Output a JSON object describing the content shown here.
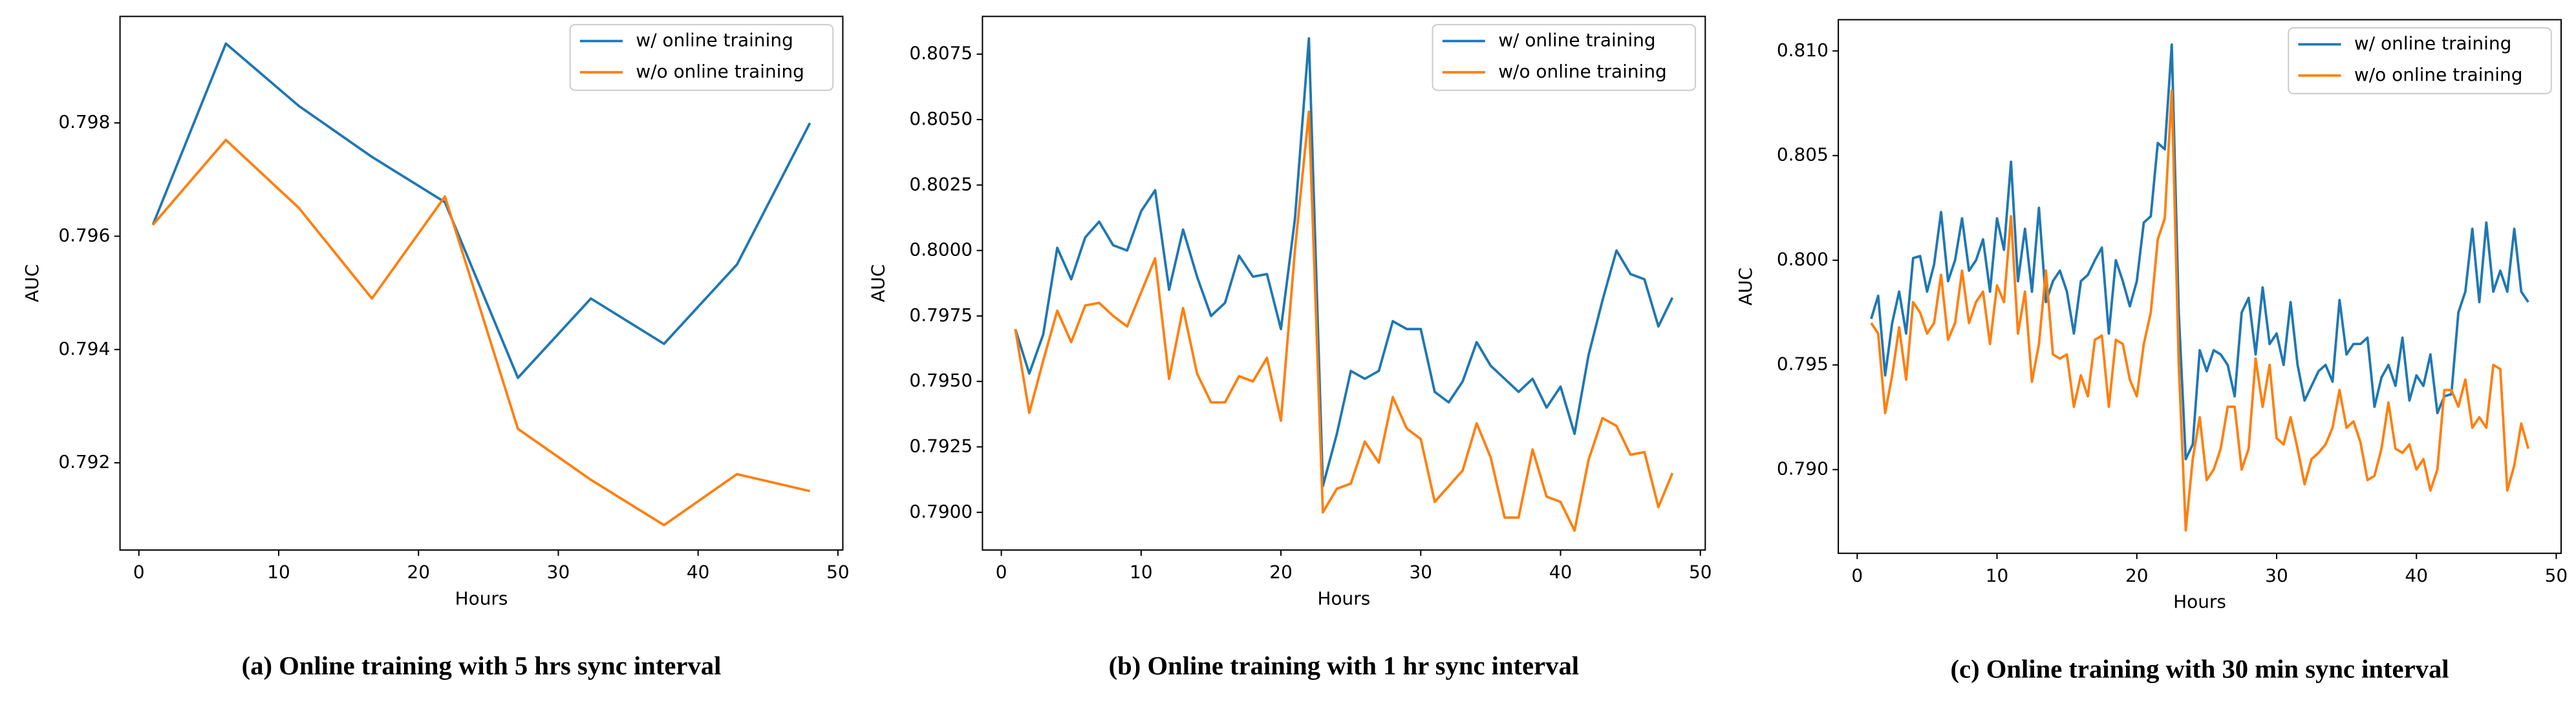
{
  "chart_data": [
    {
      "type": "line",
      "caption": "(a) Online training with 5 hrs sync interval",
      "xlabel": "Hours",
      "ylabel": "AUC",
      "legend": "upper right",
      "x": [
        1,
        6.22,
        11.44,
        16.67,
        21.89,
        27.11,
        32.33,
        37.56,
        42.78,
        48
      ],
      "series": [
        {
          "name": "w/ online training",
          "color": "#1f77b4",
          "values": [
            0.7962,
            0.7994,
            0.7983,
            0.7974,
            0.7966,
            0.7935,
            0.7949,
            0.7941,
            0.7955,
            0.798
          ]
        },
        {
          "name": "w/o online training",
          "color": "#ff7f0e",
          "values": [
            0.7962,
            0.7977,
            0.7965,
            0.7949,
            0.7967,
            0.7926,
            0.7917,
            0.7909,
            0.7918,
            0.7915
          ]
        }
      ],
      "xlim": [
        -1.35,
        50.35
      ],
      "xticks": [
        0,
        10,
        20,
        30,
        40,
        50
      ],
      "ylim": [
        0.79046,
        0.79988
      ],
      "yticks": [
        0.792,
        0.794,
        0.796,
        0.798
      ]
    },
    {
      "type": "line",
      "caption": "(b) Online training with 1 hr sync interval",
      "xlabel": "Hours",
      "ylabel": "AUC",
      "legend": "upper right",
      "x": [
        1,
        2,
        3,
        4,
        5,
        6,
        7,
        8,
        9,
        10,
        11,
        12,
        13,
        14,
        15,
        16,
        17,
        18,
        19,
        20,
        21,
        22,
        23,
        24,
        25,
        26,
        27,
        28,
        29,
        30,
        31,
        32,
        33,
        34,
        35,
        36,
        37,
        38,
        39,
        40,
        41,
        42,
        43,
        44,
        45,
        46,
        47,
        48
      ],
      "series": [
        {
          "name": "w/ online training",
          "color": "#1f77b4",
          "values": [
            0.797,
            0.7953,
            0.7968,
            0.8001,
            0.7989,
            0.8005,
            0.8011,
            0.8002,
            0.8,
            0.8015,
            0.8023,
            0.7985,
            0.8008,
            0.799,
            0.7975,
            0.798,
            0.7998,
            0.799,
            0.7991,
            0.797,
            0.8012,
            0.8081,
            0.791,
            0.793,
            0.7954,
            0.7951,
            0.7954,
            0.7973,
            0.797,
            0.797,
            0.7946,
            0.7942,
            0.795,
            0.7965,
            0.7956,
            0.7951,
            0.7946,
            0.7951,
            0.794,
            0.7948,
            0.793,
            0.796,
            0.7981,
            0.8,
            0.7991,
            0.7989,
            0.7971,
            0.7982
          ]
        },
        {
          "name": "w/o online training",
          "color": "#ff7f0e",
          "values": [
            0.797,
            0.7938,
            0.7958,
            0.7977,
            0.7965,
            0.7979,
            0.798,
            0.7975,
            0.7971,
            0.7984,
            0.7997,
            0.7951,
            0.7978,
            0.7953,
            0.7942,
            0.7942,
            0.7952,
            0.795,
            0.7959,
            0.7935,
            0.8,
            0.8053,
            0.79,
            0.7909,
            0.7911,
            0.7927,
            0.7919,
            0.7944,
            0.7932,
            0.7928,
            0.7904,
            0.791,
            0.7916,
            0.7934,
            0.7921,
            0.7898,
            0.7898,
            0.7924,
            0.7906,
            0.7904,
            0.7893,
            0.792,
            0.7936,
            0.7933,
            0.7922,
            0.7923,
            0.7902,
            0.7915
          ]
        }
      ],
      "xlim": [
        -1.35,
        50.35
      ],
      "xticks": [
        0,
        10,
        20,
        30,
        40,
        50
      ],
      "ylim": [
        0.78856,
        0.80894
      ],
      "yticks": [
        {
          "value": 0.79,
          "label": "0.7900"
        },
        0.7925,
        {
          "value": 0.795,
          "label": "0.7950"
        },
        0.7975,
        {
          "value": 0.8,
          "label": "0.8000"
        },
        0.8025,
        {
          "value": 0.805,
          "label": "0.8050"
        },
        0.8075
      ]
    },
    {
      "type": "line",
      "caption": "(c) Online training with 30 min sync interval",
      "xlabel": "Hours",
      "ylabel": "AUC",
      "legend": "upper right",
      "x": [
        1,
        1.5,
        2,
        2.5,
        3,
        3.5,
        4,
        4.5,
        5,
        5.5,
        6,
        6.5,
        7,
        7.5,
        8,
        8.5,
        9,
        9.5,
        10,
        10.5,
        11,
        11.5,
        12,
        12.5,
        13,
        13.5,
        14,
        14.5,
        15,
        15.5,
        16,
        16.5,
        17,
        17.5,
        18,
        18.5,
        19,
        19.5,
        20,
        20.5,
        21,
        21.5,
        22,
        22.5,
        23,
        23.5,
        24,
        24.5,
        25,
        25.5,
        26,
        26.5,
        27,
        27.5,
        28,
        28.5,
        29,
        29.5,
        30,
        30.5,
        31,
        31.5,
        32,
        32.5,
        33,
        33.5,
        34,
        34.5,
        35,
        35.5,
        36,
        36.5,
        37,
        37.5,
        38,
        38.5,
        39,
        39.5,
        40,
        40.5,
        41,
        41.5,
        42,
        42.5,
        43,
        43.5,
        44,
        44.5,
        45,
        45.5,
        46,
        46.5,
        47,
        47.5,
        48
      ],
      "series": [
        {
          "name": "w/ online training",
          "color": "#1f77b4",
          "values": [
            0.7972,
            0.7983,
            0.7945,
            0.797,
            0.7985,
            0.7965,
            0.8001,
            0.8002,
            0.7985,
            0.7998,
            0.8023,
            0.799,
            0.8,
            0.802,
            0.7995,
            0.8,
            0.801,
            0.7985,
            0.802,
            0.8005,
            0.8047,
            0.799,
            0.8015,
            0.7985,
            0.8025,
            0.798,
            0.799,
            0.7995,
            0.7985,
            0.7965,
            0.799,
            0.7993,
            0.8,
            0.8006,
            0.7965,
            0.8,
            0.799,
            0.7978,
            0.799,
            0.8018,
            0.8021,
            0.8056,
            0.8053,
            0.8103,
            0.7975,
            0.7905,
            0.7912,
            0.7957,
            0.7947,
            0.7957,
            0.7955,
            0.795,
            0.7935,
            0.7975,
            0.7982,
            0.7955,
            0.7987,
            0.796,
            0.7965,
            0.795,
            0.798,
            0.795,
            0.7933,
            0.794,
            0.7947,
            0.795,
            0.7942,
            0.7981,
            0.7955,
            0.796,
            0.796,
            0.7963,
            0.793,
            0.7944,
            0.795,
            0.794,
            0.7963,
            0.7933,
            0.7945,
            0.794,
            0.7955,
            0.7927,
            0.7935,
            0.7936,
            0.7975,
            0.7985,
            0.8015,
            0.798,
            0.8018,
            0.7985,
            0.7995,
            0.7985,
            0.8015,
            0.7985,
            0.798
          ]
        },
        {
          "name": "w/o online training",
          "color": "#ff7f0e",
          "values": [
            0.797,
            0.7965,
            0.7927,
            0.7945,
            0.7968,
            0.7943,
            0.798,
            0.7975,
            0.7965,
            0.797,
            0.7993,
            0.7962,
            0.797,
            0.7995,
            0.797,
            0.798,
            0.7985,
            0.796,
            0.7988,
            0.798,
            0.8021,
            0.7965,
            0.7985,
            0.7942,
            0.796,
            0.7995,
            0.7955,
            0.7953,
            0.7955,
            0.793,
            0.7945,
            0.7935,
            0.7962,
            0.7964,
            0.793,
            0.7962,
            0.796,
            0.7943,
            0.7935,
            0.796,
            0.7975,
            0.801,
            0.802,
            0.8081,
            0.795,
            0.7871,
            0.7905,
            0.7925,
            0.7895,
            0.79,
            0.791,
            0.793,
            0.793,
            0.79,
            0.791,
            0.7953,
            0.793,
            0.795,
            0.7915,
            0.7912,
            0.7925,
            0.791,
            0.7893,
            0.7905,
            0.7908,
            0.7912,
            0.792,
            0.7938,
            0.792,
            0.7923,
            0.7913,
            0.7895,
            0.7897,
            0.791,
            0.7932,
            0.791,
            0.7908,
            0.7912,
            0.79,
            0.7905,
            0.789,
            0.79,
            0.7938,
            0.7938,
            0.793,
            0.7943,
            0.792,
            0.7925,
            0.792,
            0.795,
            0.7948,
            0.789,
            0.7902,
            0.7922,
            0.791
          ]
        }
      ],
      "xlim": [
        -1.35,
        50.35
      ],
      "xticks": [
        0,
        10,
        20,
        30,
        40,
        50
      ],
      "ylim": [
        0.786,
        0.81149
      ],
      "yticks": [
        {
          "value": 0.79,
          "label": "0.790"
        },
        0.795,
        {
          "value": 0.8,
          "label": "0.800"
        },
        0.805,
        {
          "value": 0.81,
          "label": "0.810"
        }
      ]
    }
  ]
}
